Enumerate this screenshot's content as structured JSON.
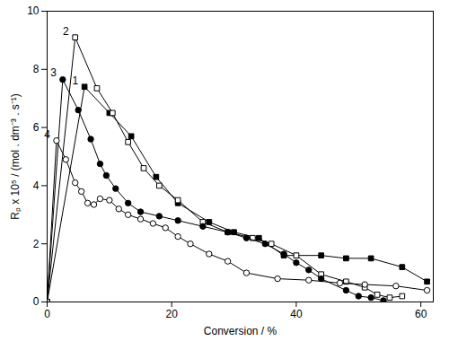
{
  "chart_data": {
    "type": "line",
    "x_label": "Conversion / %",
    "y_label": "Rₚ x 10⁵ / (mol . dm⁻³ . s⁻¹)",
    "xlim": [
      0,
      62
    ],
    "ylim": [
      0,
      10
    ],
    "xticks": [
      0,
      20,
      40,
      60
    ],
    "yticks": [
      0,
      2,
      4,
      6,
      8,
      10
    ],
    "grid": false,
    "series": [
      {
        "name": "1",
        "color": "#000000",
        "marker": "square",
        "x": [
          0,
          6,
          10,
          13.5,
          17.5,
          21,
          26,
          30,
          34,
          38,
          44,
          48,
          52,
          57,
          61
        ],
        "values": [
          0,
          7.4,
          6.5,
          5.7,
          4.3,
          3.4,
          2.75,
          2.4,
          2.2,
          1.6,
          1.6,
          1.5,
          1.5,
          1.2,
          0.7
        ]
      },
      {
        "name": "2",
        "color": "#000000",
        "marker": "square-open",
        "x": [
          0,
          4.5,
          8,
          10.5,
          13,
          15.5,
          18,
          21,
          25,
          29,
          33,
          36,
          40,
          44,
          48,
          51,
          53,
          55,
          57
        ],
        "values": [
          0,
          9.1,
          7.35,
          6.5,
          5.5,
          4.6,
          4.0,
          3.5,
          2.75,
          2.4,
          2.2,
          2.0,
          1.6,
          0.95,
          0.7,
          0.5,
          0.25,
          0.15,
          0.2
        ]
      },
      {
        "name": "3",
        "color": "#000000",
        "marker": "circle",
        "x": [
          0,
          2.5,
          5,
          7,
          8.5,
          9.5,
          11,
          13,
          15,
          18,
          21,
          25,
          29,
          32,
          35,
          38,
          40,
          42,
          44,
          48,
          50,
          52,
          54
        ],
        "values": [
          0,
          7.65,
          6.6,
          5.6,
          4.75,
          4.35,
          3.9,
          3.4,
          3.1,
          2.95,
          2.8,
          2.6,
          2.4,
          2.2,
          2.0,
          1.65,
          1.35,
          1.1,
          0.8,
          0.4,
          0.2,
          0.15,
          0.05
        ]
      },
      {
        "name": "4",
        "color": "#000000",
        "marker": "circle-open",
        "x": [
          0,
          1.5,
          3,
          4.5,
          5.5,
          6.5,
          7.5,
          8.5,
          10,
          11.5,
          13,
          15,
          17,
          19,
          21,
          23,
          26,
          29,
          32,
          37,
          42,
          47,
          51,
          56,
          61
        ],
        "values": [
          0,
          5.55,
          4.9,
          4.1,
          3.8,
          3.4,
          3.35,
          3.55,
          3.5,
          3.2,
          3.0,
          2.85,
          2.7,
          2.55,
          2.25,
          2.0,
          1.65,
          1.4,
          1.0,
          0.8,
          0.75,
          0.65,
          0.6,
          0.55,
          0.4
        ]
      }
    ]
  }
}
